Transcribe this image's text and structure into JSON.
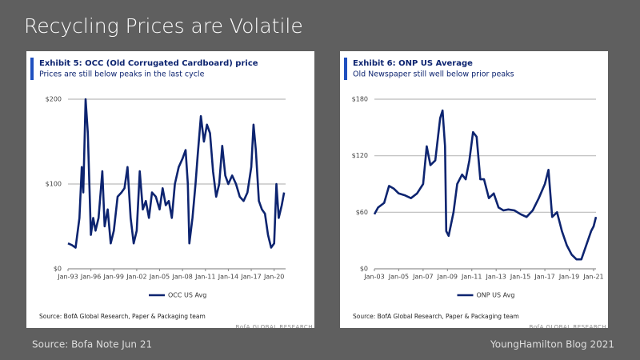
{
  "slide_title": "Recycling Prices are Volatile",
  "footer_left": "Source: Bofa Note Jun 21",
  "footer_right": "YoungHamilton Blog 2021",
  "chart_data": [
    {
      "type": "line",
      "title": "Exhibit 5: OCC (Old Corrugated Cardboard) price",
      "subtitle": "Prices are still below peaks in the last cycle",
      "source": "Source: BofA Global Research, Paper & Packaging team",
      "watermark": "BofA GLOBAL RESEARCH",
      "x": [
        1993.0,
        1993.5,
        1994.0,
        1994.5,
        1994.8,
        1995.0,
        1995.3,
        1995.6,
        1996.0,
        1996.3,
        1996.6,
        1997.0,
        1997.5,
        1997.8,
        1998.2,
        1998.6,
        1999.0,
        1999.5,
        2000.0,
        2000.4,
        2000.8,
        2001.2,
        2001.6,
        2002.0,
        2002.4,
        2002.8,
        2003.2,
        2003.6,
        2004.0,
        2004.5,
        2005.0,
        2005.4,
        2005.8,
        2006.2,
        2006.6,
        2007.0,
        2007.5,
        2008.0,
        2008.4,
        2008.7,
        2008.9,
        2009.3,
        2009.7,
        2010.0,
        2010.4,
        2010.8,
        2011.2,
        2011.6,
        2012.0,
        2012.4,
        2012.8,
        2013.2,
        2013.6,
        2014.0,
        2014.5,
        2015.0,
        2015.5,
        2016.0,
        2016.5,
        2017.0,
        2017.3,
        2017.6,
        2018.0,
        2018.4,
        2018.8,
        2019.2,
        2019.6,
        2020.0,
        2020.3,
        2020.6,
        2021.0,
        2021.3
      ],
      "series": [
        {
          "name": "OCC US Avg",
          "color": "#0d2470",
          "values": [
            30,
            28,
            25,
            60,
            120,
            90,
            200,
            160,
            40,
            60,
            45,
            60,
            115,
            50,
            70,
            30,
            45,
            85,
            90,
            95,
            120,
            60,
            30,
            45,
            115,
            70,
            80,
            60,
            90,
            85,
            70,
            95,
            75,
            80,
            60,
            100,
            120,
            130,
            140,
            100,
            30,
            60,
            100,
            135,
            180,
            150,
            170,
            160,
            115,
            85,
            100,
            145,
            110,
            100,
            110,
            100,
            85,
            80,
            90,
            120,
            170,
            140,
            80,
            70,
            65,
            40,
            25,
            30,
            100,
            60,
            75,
            90
          ]
        }
      ],
      "xlim": [
        1993,
        2021.5
      ],
      "xticks": [
        {
          "value": 1993,
          "label": "Jan-93"
        },
        {
          "value": 1996,
          "label": "Jan-96"
        },
        {
          "value": 1999,
          "label": "Jan-99"
        },
        {
          "value": 2002,
          "label": "Jan-02"
        },
        {
          "value": 2005,
          "label": "Jan-05"
        },
        {
          "value": 2008,
          "label": "Jan-08"
        },
        {
          "value": 2011,
          "label": "Jan-11"
        },
        {
          "value": 2014,
          "label": "Jan-14"
        },
        {
          "value": 2017,
          "label": "Jan-17"
        },
        {
          "value": 2020,
          "label": "Jan-20"
        }
      ],
      "ylim": [
        0,
        200
      ],
      "yticks": [
        {
          "value": 0,
          "label": "$0"
        },
        {
          "value": 100,
          "label": "$100"
        },
        {
          "value": 200,
          "label": "$200"
        }
      ],
      "grid": true
    },
    {
      "type": "line",
      "title": "Exhibit 6: ONP US Average",
      "subtitle": "Old Newspaper still well below prior peaks",
      "source": "Source: BofA Global Research, Paper & Packaging team",
      "watermark": "BofA GLOBAL RESEARCH",
      "x": [
        2003.0,
        2003.3,
        2003.8,
        2004.2,
        2004.6,
        2005.0,
        2005.5,
        2006.0,
        2006.5,
        2007.0,
        2007.3,
        2007.6,
        2008.0,
        2008.4,
        2008.6,
        2008.8,
        2008.9,
        2009.1,
        2009.5,
        2009.8,
        2010.2,
        2010.5,
        2010.8,
        2011.1,
        2011.4,
        2011.7,
        2012.0,
        2012.4,
        2012.8,
        2013.2,
        2013.6,
        2014.0,
        2014.5,
        2015.0,
        2015.5,
        2016.0,
        2016.5,
        2017.0,
        2017.3,
        2017.6,
        2018.0,
        2018.4,
        2018.8,
        2019.2,
        2019.6,
        2020.0,
        2020.4,
        2020.8,
        2021.0,
        2021.2
      ],
      "series": [
        {
          "name": "ONP US Avg",
          "color": "#0d2470",
          "values": [
            58,
            65,
            70,
            88,
            85,
            80,
            78,
            75,
            80,
            90,
            130,
            110,
            115,
            160,
            168,
            130,
            40,
            35,
            60,
            90,
            100,
            95,
            115,
            145,
            140,
            95,
            95,
            75,
            80,
            65,
            62,
            63,
            62,
            58,
            55,
            62,
            75,
            90,
            105,
            55,
            60,
            40,
            25,
            15,
            10,
            10,
            25,
            40,
            45,
            55
          ]
        }
      ],
      "xlim": [
        2003,
        2021.2
      ],
      "xticks": [
        {
          "value": 2003,
          "label": "Jan-03"
        },
        {
          "value": 2005,
          "label": "Jan-05"
        },
        {
          "value": 2007,
          "label": "Jan-07"
        },
        {
          "value": 2009,
          "label": "Jan-09"
        },
        {
          "value": 2011,
          "label": "Jan-11"
        },
        {
          "value": 2013,
          "label": "Jan-13"
        },
        {
          "value": 2015,
          "label": "Jan-15"
        },
        {
          "value": 2017,
          "label": "Jan-17"
        },
        {
          "value": 2019,
          "label": "Jan-19"
        },
        {
          "value": 2021,
          "label": "Jan-21"
        }
      ],
      "ylim": [
        0,
        180
      ],
      "yticks": [
        {
          "value": 0,
          "label": "$0"
        },
        {
          "value": 60,
          "label": "$60"
        },
        {
          "value": 120,
          "label": "$120"
        },
        {
          "value": 180,
          "label": "$180"
        }
      ],
      "grid": true
    }
  ]
}
